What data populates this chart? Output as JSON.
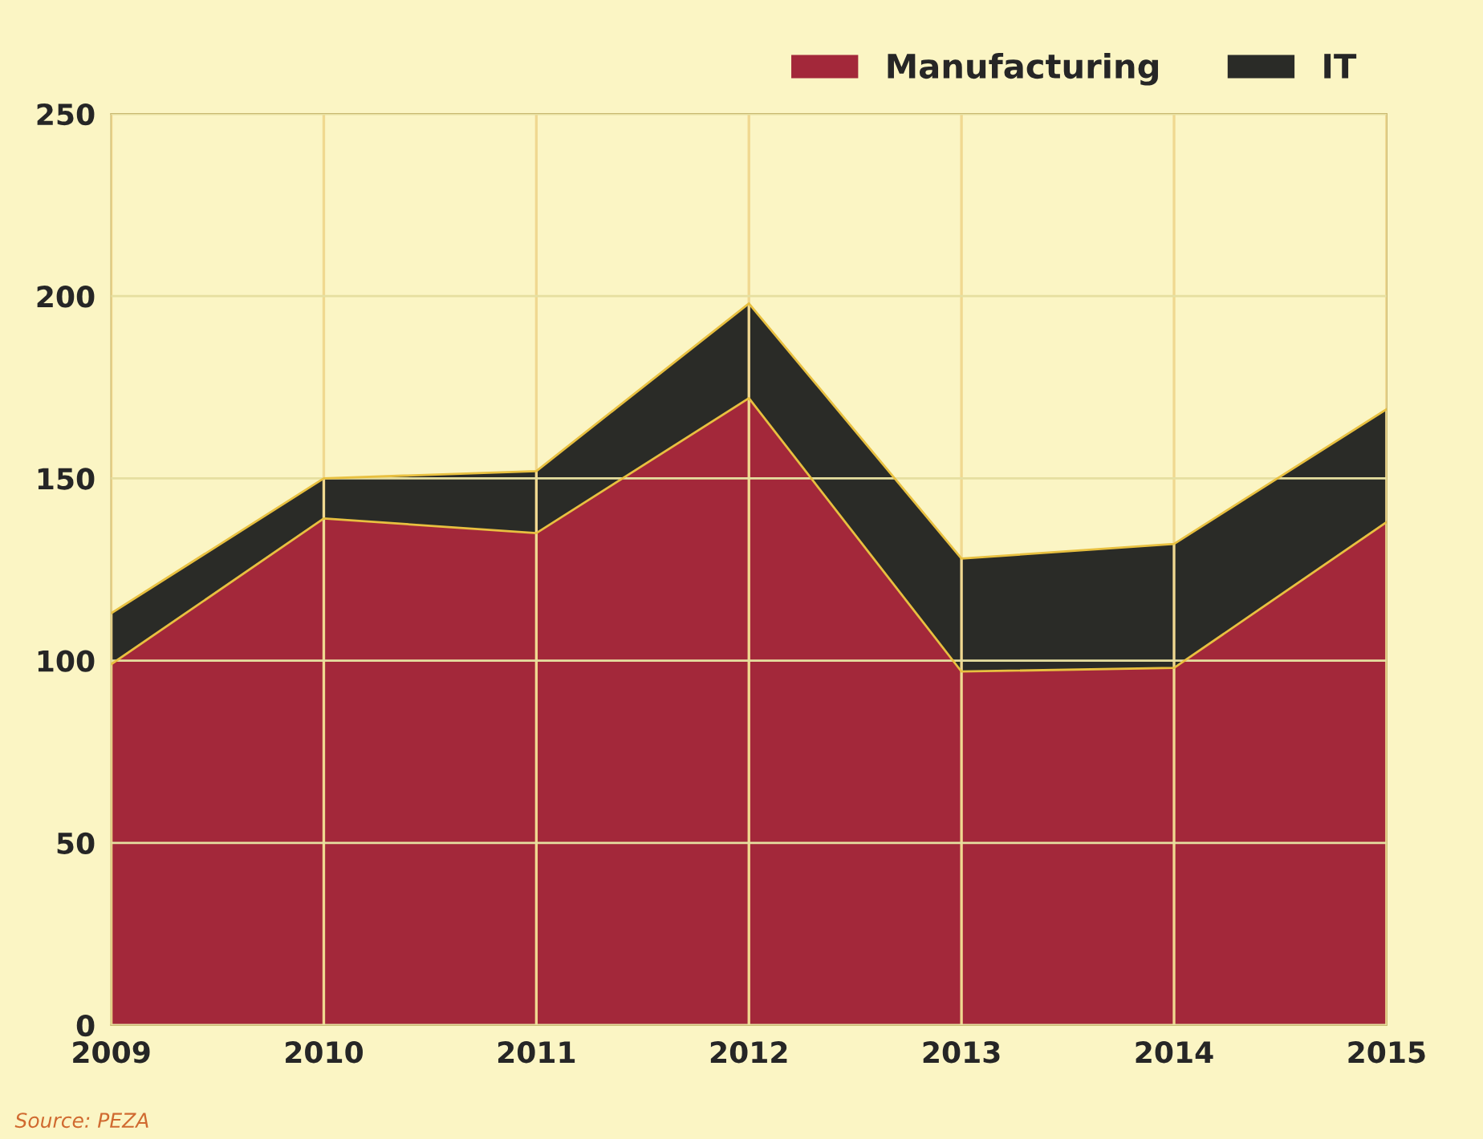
{
  "chart_data": {
    "type": "area",
    "stacked": true,
    "x": [
      "2009",
      "2010",
      "2011",
      "2012",
      "2013",
      "2014",
      "2015"
    ],
    "series": [
      {
        "name": "Manufacturing",
        "color": "#a3283a",
        "values": [
          99,
          139,
          135,
          172,
          97,
          98,
          138
        ]
      },
      {
        "name": "IT",
        "color": "#2a2b27",
        "values": [
          14,
          11,
          17,
          26,
          31,
          34,
          31
        ]
      }
    ],
    "ylim": [
      0,
      250
    ],
    "yticks": [
      0,
      50,
      100,
      150,
      200,
      250
    ],
    "xlim": [
      "2009",
      "2015"
    ],
    "xticks": [
      {
        "value": "2009",
        "label": "2009"
      },
      {
        "value": "2010",
        "label": "2010"
      },
      {
        "value": "2011",
        "label": "2011"
      },
      {
        "value": "2012",
        "label": "2012"
      },
      {
        "value": "2013",
        "label": "2013"
      },
      {
        "value": "2014",
        "label": "2014"
      },
      {
        "value": "2015",
        "label": "2015"
      }
    ],
    "grid": true,
    "legend": "top right",
    "annotations": [
      "Source: PEZA"
    ]
  }
}
